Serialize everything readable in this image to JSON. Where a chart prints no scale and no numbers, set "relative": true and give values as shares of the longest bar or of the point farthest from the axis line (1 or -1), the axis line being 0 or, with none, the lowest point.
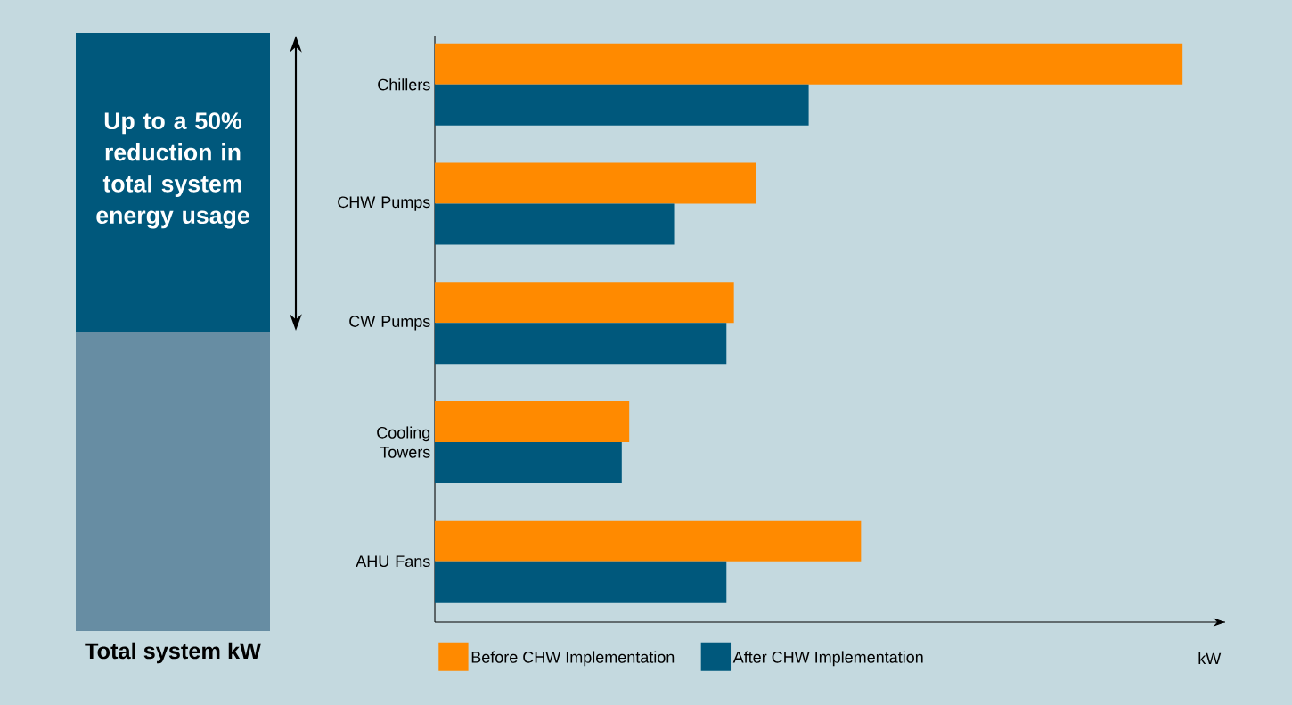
{
  "chart_data": [
    {
      "type": "bar",
      "stacked": true,
      "relative": true,
      "categories": [
        null
      ],
      "xlabel": "Total system kW",
      "annotations": [
        "Up to a 50% reduction in total system energy usage"
      ],
      "series": [
        {
          "color": "#678da3",
          "values": [
            0.5
          ]
        },
        {
          "color": "#00587c",
          "values": [
            0.5
          ]
        }
      ]
    },
    {
      "type": "bar",
      "orientation": "horizontal",
      "relative": true,
      "xlabel": "kW",
      "legend": "bottom",
      "categories": [
        "Chillers",
        "CHW Pumps",
        "CW Pumps",
        "Cooling Towers",
        "AHU Fans"
      ],
      "series": [
        {
          "name": "Before CHW Implementation",
          "color": "#ff8a00",
          "values": [
            1,
            0.43,
            0.4,
            0.26,
            0.57
          ]
        },
        {
          "name": "After CHW Implementation",
          "color": "#00587c",
          "values": [
            0.5,
            0.32,
            0.39,
            0.25,
            0.39
          ]
        }
      ]
    }
  ]
}
